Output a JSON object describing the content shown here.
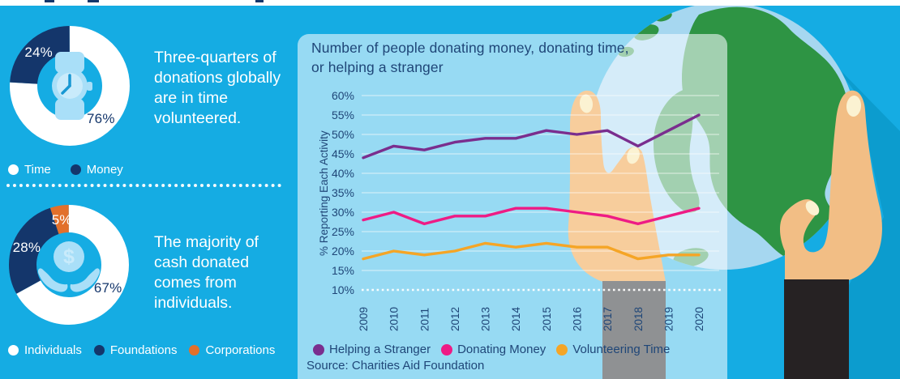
{
  "colors": {
    "background_cyan": "#15ACE3",
    "panel_tint": "rgba(246,251,255,0.58)",
    "navy_text": "#1F4678",
    "navy_dark": "#14366B",
    "white": "#FFFFFF",
    "icon_light_blue": "#A9DFF8",
    "icon_face_blue": "#C9EBFB",
    "icon_hand_stroke": "#1898D3",
    "purple": "#7A2E8E",
    "pink": "#EE1B85",
    "amber": "#F5A526",
    "burnt_orange": "#E2702B",
    "grid_white": "rgba(255,255,255,0.45)",
    "globe_green": "#2E9444",
    "ocean_blue": "#A6D7F0",
    "skin": "#F2BE85",
    "skin_washed": "#F7CD9C",
    "nail": "#FBF2D2",
    "sleeve_black": "#262223",
    "sleeve_gray": "#8F9193",
    "shadow_cyan": "#0C9CCE"
  },
  "chart_data": [
    {
      "type": "pie",
      "subtype": "donut",
      "caption": "Three-quarters of donations globally are in time volunteered.",
      "caption_lines": [
        "Three-quarters of",
        "donations globally",
        "are in time",
        "volunteered."
      ],
      "icon": "watch-icon",
      "segments": [
        {
          "label": "Time",
          "value": 76,
          "color": "#FFFFFF",
          "value_label_color": "#14366B"
        },
        {
          "label": "Money",
          "value": 24,
          "color": "#14366B",
          "value_label_color": "#FFFFFF"
        }
      ]
    },
    {
      "type": "pie",
      "subtype": "donut",
      "caption": "The majority of cash donated comes from individuals.",
      "caption_lines": [
        "The majority of",
        "cash donated",
        "comes from",
        "individuals."
      ],
      "icon": "hands-coin-icon",
      "segments": [
        {
          "label": "Individuals",
          "value": 67,
          "color": "#FFFFFF",
          "value_label_color": "#14366B"
        },
        {
          "label": "Foundations",
          "value": 28,
          "color": "#14366B",
          "value_label_color": "#FFFFFF"
        },
        {
          "label": "Corporations",
          "value": 5,
          "color": "#E2702B",
          "value_label_color": "#FFFFFF"
        }
      ]
    },
    {
      "type": "line",
      "title": "Number of people donating money, donating time, or helping a stranger",
      "title_line1": "Number of people donating money, donating time,",
      "title_line2": "or helping a stranger",
      "ylabel": "% Reporting Each Activity",
      "x": [
        2009,
        2010,
        2011,
        2012,
        2013,
        2014,
        2015,
        2016,
        2017,
        2018,
        2019,
        2020
      ],
      "series": [
        {
          "name": "Helping a Stranger",
          "color": "#7A2E8E",
          "values": [
            44,
            47,
            46,
            48,
            49,
            49,
            51,
            50,
            51,
            47,
            51,
            55
          ]
        },
        {
          "name": "Donating Money",
          "color": "#EE1B85",
          "values": [
            28,
            30,
            27,
            29,
            29,
            31,
            31,
            30,
            29,
            27,
            29,
            31
          ]
        },
        {
          "name": "Volunteering Time",
          "color": "#F5A526",
          "values": [
            18,
            20,
            19,
            20,
            22,
            21,
            22,
            21,
            21,
            18,
            19,
            19
          ]
        }
      ],
      "ylim": [
        10,
        60
      ],
      "ytick_step": 5,
      "ytick_suffix": "%",
      "grid": true,
      "legend_position": "bottom",
      "source": "Source: Charities Aid Foundation"
    }
  ]
}
